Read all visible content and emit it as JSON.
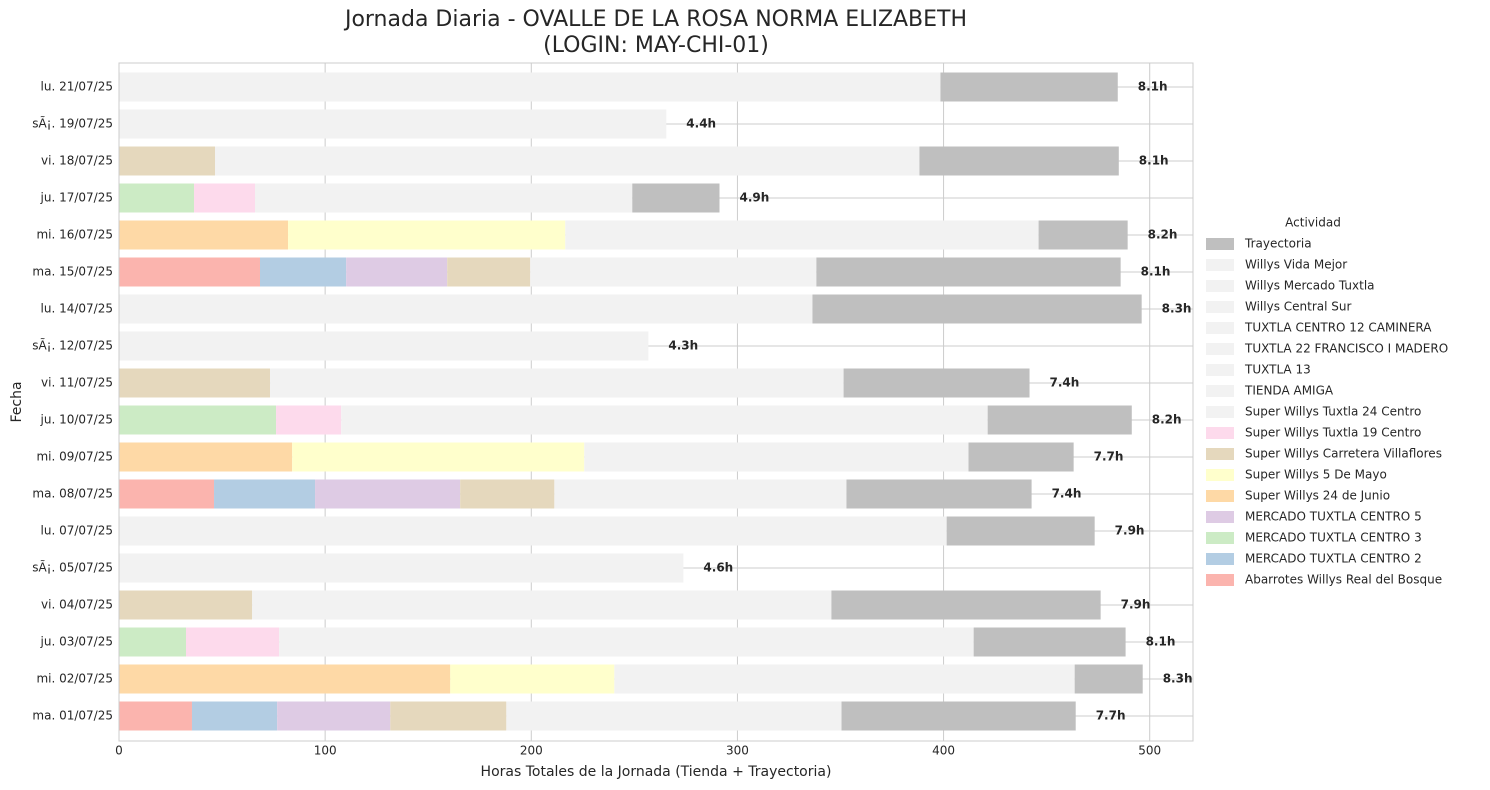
{
  "chart_data": {
    "type": "stacked-barh",
    "title": [
      "Jornada Diaria - OVALLE DE LA ROSA NORMA ELIZABETH",
      "(LOGIN: MAY-CHI-01)"
    ],
    "xlabel": "Horas Totales de la Jornada (Tienda + Trayectoria)",
    "ylabel": "Fecha",
    "legend_title": "Actividad",
    "legend": "right",
    "grid": true,
    "xlim": [
      0,
      521
    ],
    "xticks": [
      0,
      100,
      200,
      300,
      400,
      500
    ],
    "categories": [
      "lu. 21/07/25",
      "sÃ¡. 19/07/25",
      "vi. 18/07/25",
      "ju. 17/07/25",
      "mi. 16/07/25",
      "ma. 15/07/25",
      "lu. 14/07/25",
      "sÃ¡. 12/07/25",
      "vi. 11/07/25",
      "ju. 10/07/25",
      "mi. 09/07/25",
      "ma. 08/07/25",
      "lu. 07/07/25",
      "sÃ¡. 05/07/25",
      "vi. 04/07/25",
      "ju. 03/07/25",
      "mi. 02/07/25",
      "ma. 01/07/25"
    ],
    "total_labels": [
      "8.1h",
      "4.4h",
      "8.1h",
      "4.9h",
      "8.2h",
      "8.1h",
      "8.3h",
      "4.3h",
      "7.4h",
      "8.2h",
      "7.7h",
      "7.4h",
      "7.9h",
      "4.6h",
      "7.9h",
      "8.1h",
      "8.3h",
      "7.7h"
    ],
    "series": [
      {
        "name": "Abarrotes Willys Real del Bosque",
        "color": "#fbb4ae",
        "values": [
          0,
          0,
          0,
          0,
          0,
          68.4,
          0,
          0,
          0,
          0,
          0,
          46.1,
          0,
          0,
          0,
          0,
          0,
          35.4
        ]
      },
      {
        "name": "MERCADO TUXTLA CENTRO 2",
        "color": "#b3cde3",
        "values": [
          0,
          0,
          0,
          0,
          0,
          41.8,
          0,
          0,
          0,
          0,
          0,
          49,
          0,
          0,
          0,
          0,
          0,
          41.3
        ]
      },
      {
        "name": "MERCADO TUXTLA CENTRO 3",
        "color": "#ccebc5",
        "values": [
          0,
          0,
          0,
          36.4,
          0,
          0,
          0,
          0,
          0,
          76.2,
          0,
          0,
          0,
          0,
          0,
          32.5,
          0,
          0
        ]
      },
      {
        "name": "MERCADO TUXTLA CENTRO 5",
        "color": "#decbe4",
        "values": [
          0,
          0,
          0,
          0,
          0,
          49,
          0,
          0,
          0,
          0,
          0,
          70.4,
          0,
          0,
          0,
          0,
          0,
          54.9
        ]
      },
      {
        "name": "Super Willys 24 de Junio",
        "color": "#fed9a6",
        "values": [
          0,
          0,
          0,
          0,
          82,
          0,
          0,
          0,
          0,
          0,
          84,
          0,
          0,
          0,
          0,
          0,
          160.7,
          0
        ]
      },
      {
        "name": "Super Willys 5 De Mayo",
        "color": "#ffffcc",
        "values": [
          0,
          0,
          0,
          0,
          134.5,
          0,
          0,
          0,
          0,
          0,
          141.7,
          0,
          0,
          0,
          0,
          0,
          79.6,
          0
        ]
      },
      {
        "name": "Super Willys Carretera Villaflores",
        "color": "#e5d8bd",
        "values": [
          0,
          0,
          46.6,
          0,
          0,
          40.3,
          0,
          0,
          73.3,
          0,
          0,
          45.7,
          0,
          0,
          64.6,
          0,
          0,
          56.3
        ]
      },
      {
        "name": "Super Willys Tuxtla 19 Centro",
        "color": "#fddaec",
        "values": [
          0,
          0,
          0,
          29.6,
          0,
          0,
          0,
          0,
          0,
          31.6,
          0,
          0,
          0,
          0,
          0,
          45.2,
          0,
          0
        ]
      },
      {
        "name": "Super Willys Tuxtla 24 Centro",
        "color": "#f2f2f2",
        "values": [
          398.5,
          265.5,
          341.7,
          183,
          229.6,
          138.8,
          336.4,
          256.8,
          278.2,
          313.6,
          186.4,
          141.7,
          401.5,
          273.8,
          281,
          336.9,
          223.3,
          162.6
        ]
      },
      {
        "name": "TIENDA AMIGA",
        "color": "#f2f2f2",
        "values": [
          0,
          0,
          0,
          0,
          0,
          0,
          0,
          0,
          0,
          0,
          0,
          0,
          0,
          0,
          0,
          0,
          0,
          0
        ]
      },
      {
        "name": "TUXTLA 13",
        "color": "#f2f2f2",
        "values": [
          0,
          0,
          0,
          0,
          0,
          0,
          0,
          0,
          0,
          0,
          0,
          0,
          0,
          0,
          0,
          0,
          0,
          0
        ]
      },
      {
        "name": "TUXTLA 22 FRANCISCO I MADERO",
        "color": "#f2f2f2",
        "values": [
          0,
          0,
          0,
          0,
          0,
          0,
          0,
          0,
          0,
          0,
          0,
          0,
          0,
          0,
          0,
          0,
          0,
          0
        ]
      },
      {
        "name": "TUXTLA CENTRO 12 CAMINERA",
        "color": "#f2f2f2",
        "values": [
          0,
          0,
          0,
          0,
          0,
          0,
          0,
          0,
          0,
          0,
          0,
          0,
          0,
          0,
          0,
          0,
          0,
          0
        ]
      },
      {
        "name": "Willys Central Sur",
        "color": "#f2f2f2",
        "values": [
          0,
          0,
          0,
          0,
          0,
          0,
          0,
          0,
          0,
          0,
          0,
          0,
          0,
          0,
          0,
          0,
          0,
          0
        ]
      },
      {
        "name": "Willys Mercado Tuxtla",
        "color": "#f2f2f2",
        "values": [
          0,
          0,
          0,
          0,
          0,
          0,
          0,
          0,
          0,
          0,
          0,
          0,
          0,
          0,
          0,
          0,
          0,
          0
        ]
      },
      {
        "name": "Willys Vida Mejor",
        "color": "#f2f2f2",
        "values": [
          0,
          0,
          0,
          0,
          0,
          0,
          0,
          0,
          0,
          0,
          0,
          0,
          0,
          0,
          0,
          0,
          0,
          0
        ]
      },
      {
        "name": "Trayectoria",
        "color": "#bfbfbf",
        "values": [
          86,
          0,
          96.7,
          42.3,
          43.2,
          147.6,
          159.7,
          0,
          90.2,
          69.9,
          51,
          89.8,
          71.8,
          0,
          130.6,
          73.7,
          33,
          113.6
        ]
      }
    ]
  }
}
